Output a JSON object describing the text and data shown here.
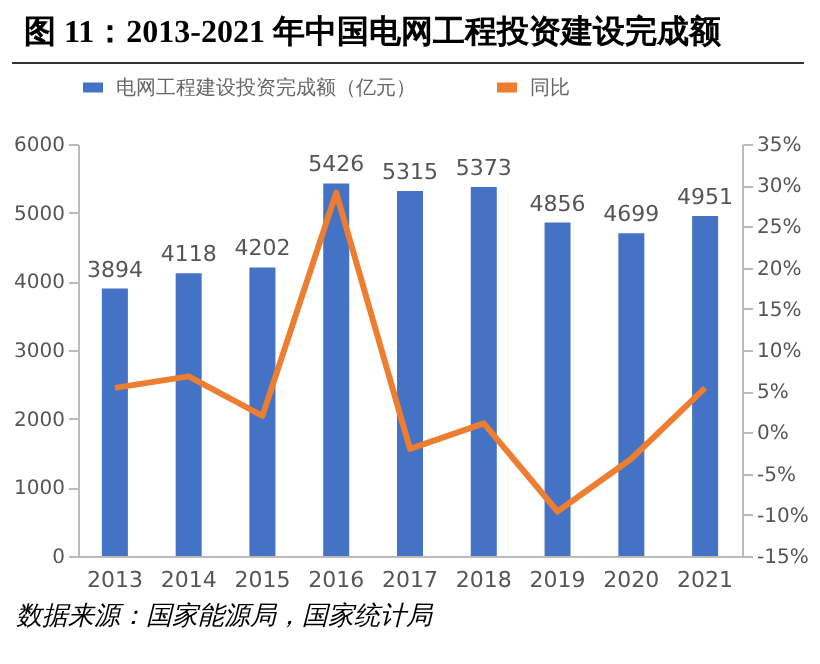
{
  "chart_data": {
    "type": "bar",
    "title": "图 11：2013-2021 年中国电网工程投资建设完成额",
    "categories": [
      "2013",
      "2014",
      "2015",
      "2016",
      "2017",
      "2018",
      "2019",
      "2020",
      "2021"
    ],
    "series": [
      {
        "name": "电网工程建设投资完成额（亿元）",
        "color": "#4472c4",
        "values": [
          3894,
          4118,
          4202,
          5426,
          5315,
          5373,
          4856,
          4699,
          4951
        ],
        "value_labels": [
          "3894",
          "4118",
          "4202",
          "5426",
          "5315",
          "5373",
          "4856",
          "4699",
          "4951"
        ]
      },
      {
        "name": "同比",
        "type": "line",
        "axis": "y2",
        "color": "#ed7d31",
        "values": [
          5.4,
          6.8,
          2.0,
          29.1,
          -2.0,
          1.1,
          -9.6,
          -3.2,
          5.4
        ]
      }
    ],
    "ylim": [
      0,
      6000
    ],
    "yticks": [
      0,
      1000,
      2000,
      3000,
      4000,
      5000,
      6000
    ],
    "y2lim": [
      -15,
      35
    ],
    "y2ticks": [
      {
        "value": -15,
        "label": "-15%"
      },
      {
        "value": -10,
        "label": "-10%"
      },
      {
        "value": -5,
        "label": "-5%"
      },
      {
        "value": 0,
        "label": "0%"
      },
      {
        "value": 5,
        "label": "5%"
      },
      {
        "value": 10,
        "label": "10%"
      },
      {
        "value": 15,
        "label": "15%"
      },
      {
        "value": 20,
        "label": "20%"
      },
      {
        "value": 25,
        "label": "25%"
      },
      {
        "value": 30,
        "label": "30%"
      },
      {
        "value": 35,
        "label": "35%"
      }
    ],
    "grid": false,
    "legend": "top",
    "marker": "none",
    "line_style": "solid",
    "annotations": [
      "数据来源：国家能源局，国家统计局"
    ]
  }
}
